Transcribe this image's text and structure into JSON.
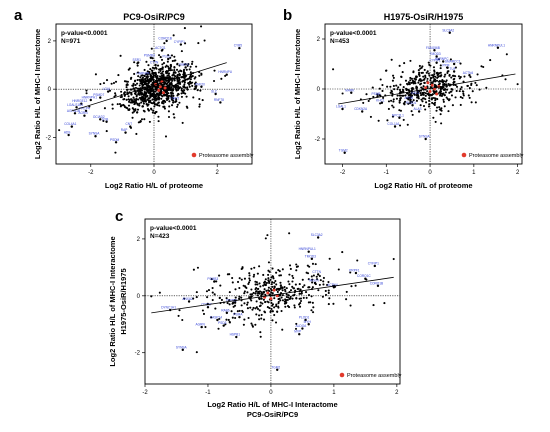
{
  "colors": {
    "points": "#000000",
    "labels": "#2f3fd6",
    "proteasome": "#e23a2c",
    "trend": "#000000"
  },
  "chart_data": [
    {
      "id": "a",
      "type": "scatter",
      "letter": "a",
      "title": "PC9-OsiR/PC9",
      "xlabel": "Log2 Ratio H/L of proteome",
      "ylabel": "Log2 Ratio H/L of MHC-I Interactome",
      "ylabel2": "",
      "xlim": [
        -3.1,
        3.1
      ],
      "ylim": [
        -3.1,
        2.7
      ],
      "xticks": [
        -2,
        0,
        2
      ],
      "yticks": [
        -2,
        0,
        2
      ],
      "xtick_labels": [
        "-2",
        "0",
        "2"
      ],
      "ytick_labels": [
        "-2",
        "0",
        "2"
      ],
      "pvalue": "p-value<0.0001",
      "n_label": "N=971",
      "n_points": 971,
      "cloud_center": [
        0.1,
        0.05
      ],
      "cloud_spread": [
        0.55,
        0.42
      ],
      "trend": {
        "x": [
          -2.6,
          2.3
        ],
        "y": [
          -0.9,
          1.1
        ]
      },
      "proteasome_points": [
        [
          0.15,
          -0.05
        ],
        [
          0.2,
          0.1
        ],
        [
          0.3,
          -0.15
        ],
        [
          0.05,
          0.2
        ],
        [
          0.25,
          0.3
        ],
        [
          0.35,
          0.05
        ]
      ],
      "legend": "Proteasome assembly",
      "labels": [
        {
          "t": "CYFIP1",
          "x": 0.85,
          "y": 1.85
        },
        {
          "t": "CORO1B",
          "x": 0.4,
          "y": 2.0
        },
        {
          "t": "ACTG1",
          "x": 0.25,
          "y": 1.6
        },
        {
          "t": "PSMB3",
          "x": -0.1,
          "y": 1.3
        },
        {
          "t": "CTTN",
          "x": 0.05,
          "y": 1.0
        },
        {
          "t": "SSR1",
          "x": -0.5,
          "y": 1.1
        },
        {
          "t": "PLEC",
          "x": 0.45,
          "y": 1.25
        },
        {
          "t": "PRPF1",
          "x": 1.0,
          "y": 0.9
        },
        {
          "t": "CYB5",
          "x": 2.7,
          "y": 1.7
        },
        {
          "t": "HNRNPU",
          "x": 2.3,
          "y": 0.6
        },
        {
          "t": "SLC",
          "x": 1.95,
          "y": -0.2
        },
        {
          "t": "RNF20",
          "x": 1.5,
          "y": 0.1
        },
        {
          "t": "RNF78",
          "x": 2.1,
          "y": -0.55
        },
        {
          "t": "HNRNPA",
          "x": -0.3,
          "y": 0.55
        },
        {
          "t": "TIMP2",
          "x": 0.7,
          "y": -0.5
        },
        {
          "t": "HNRNPH1",
          "x": -2.0,
          "y": -0.45
        },
        {
          "t": "PSMD7",
          "x": -1.7,
          "y": -0.35
        },
        {
          "t": "LGAL",
          "x": -1.45,
          "y": -0.1
        },
        {
          "t": "HNRGE12",
          "x": -2.3,
          "y": -0.6
        },
        {
          "t": "LGALS1B3",
          "x": -2.45,
          "y": -0.75
        },
        {
          "t": "PRCP4",
          "x": -2.15,
          "y": -0.9
        },
        {
          "t": "AGRN1B",
          "x": -2.5,
          "y": -1.0
        },
        {
          "t": "AGRN",
          "x": -2.2,
          "y": -1.1
        },
        {
          "t": "OCIAD2",
          "x": -1.7,
          "y": -1.25
        },
        {
          "t": "COL4A1",
          "x": -2.6,
          "y": -1.55
        },
        {
          "t": "SYB",
          "x": -1.5,
          "y": -1.35
        },
        {
          "t": "ADS",
          "x": -2.7,
          "y": -1.9
        },
        {
          "t": "SYNSA",
          "x": -1.85,
          "y": -1.95
        },
        {
          "t": "PSDM",
          "x": -1.2,
          "y": -2.2
        },
        {
          "t": "RAP",
          "x": -0.9,
          "y": -1.8
        },
        {
          "t": "CNT",
          "x": -0.75,
          "y": -1.55
        }
      ]
    },
    {
      "id": "b",
      "type": "scatter",
      "letter": "b",
      "title": "H1975-OsiR/H1975",
      "xlabel": "Log2 Ratio H/L of proteome",
      "ylabel": "Log2 Ratio H/L of MHC-I Interactome",
      "ylabel2": "",
      "xlim": [
        -2.4,
        2.1
      ],
      "ylim": [
        -3.0,
        2.6
      ],
      "xticks": [
        -2,
        -1,
        0,
        1,
        2
      ],
      "yticks": [
        -2,
        0,
        2
      ],
      "xtick_labels": [
        "-2",
        "-1",
        "0",
        "1",
        "2"
      ],
      "ytick_labels": [
        "-2",
        "0",
        "2"
      ],
      "pvalue": "p-value<0.0001",
      "n_label": "N=453",
      "n_points": 453,
      "cloud_center": [
        -0.05,
        0.05
      ],
      "cloud_spread": [
        0.45,
        0.4
      ],
      "trend": {
        "x": [
          -2.1,
          1.95
        ],
        "y": [
          -0.6,
          0.6
        ]
      },
      "proteasome_points": [
        [
          0.0,
          -0.1
        ],
        [
          0.05,
          0.15
        ],
        [
          0.1,
          0.0
        ],
        [
          -0.05,
          0.25
        ],
        [
          0.15,
          -0.2
        ],
        [
          0.2,
          0.1
        ],
        [
          -0.1,
          0.05
        ]
      ],
      "legend": "Proteasome assembly",
      "labels": [
        {
          "t": "SLC3A2",
          "x": 0.45,
          "y": 2.25
        },
        {
          "t": "HNRNPUL1",
          "x": 1.55,
          "y": 1.65
        },
        {
          "t": "FAM156B",
          "x": 0.1,
          "y": 1.55
        },
        {
          "t": "TMOD3",
          "x": 0.15,
          "y": 1.3
        },
        {
          "t": "CYFIP1",
          "x": 0.15,
          "y": 1.05
        },
        {
          "t": "HNRNPC",
          "x": 0.3,
          "y": 1.1
        },
        {
          "t": "PPIF",
          "x": 0.4,
          "y": 0.85
        },
        {
          "t": "TUF",
          "x": 0.55,
          "y": 0.7
        },
        {
          "t": "ACTN4",
          "x": 0.9,
          "y": 0.55
        },
        {
          "t": "SMARCC1",
          "x": 0.55,
          "y": 1.0
        },
        {
          "t": "MARK",
          "x": -1.8,
          "y": -0.15
        },
        {
          "t": "PSMB",
          "x": -1.2,
          "y": -0.3
        },
        {
          "t": "KHC1",
          "x": -1.1,
          "y": -0.55
        },
        {
          "t": "LGAL1",
          "x": -2.0,
          "y": -0.8
        },
        {
          "t": "CDKN2A",
          "x": -1.55,
          "y": -0.9
        },
        {
          "t": "APOB",
          "x": -0.45,
          "y": -0.45
        },
        {
          "t": "PLOD1",
          "x": -0.4,
          "y": -0.65
        },
        {
          "t": "NPC2L1",
          "x": -0.7,
          "y": -1.15
        },
        {
          "t": "COL1A1",
          "x": -0.8,
          "y": -1.5
        },
        {
          "t": "SYNSA",
          "x": -0.1,
          "y": -2.0
        },
        {
          "t": "TGM2",
          "x": -1.95,
          "y": -2.55
        },
        {
          "t": "RAC1",
          "x": -0.3,
          "y": -0.25
        },
        {
          "t": "ALAS",
          "x": -0.25,
          "y": -0.9
        }
      ]
    },
    {
      "id": "c",
      "type": "scatter",
      "letter": "c",
      "title": "",
      "xlabel": "Log2 Ratio H/L of MHC-I Interactome",
      "xlabel2": "PC9-OsiR/PC9",
      "ylabel": "Log2 Ratio H/L of MHC-I Interactome",
      "ylabel2": "H1975-OsiR/H1975",
      "xlim": [
        -2.0,
        2.05
      ],
      "ylim": [
        -3.1,
        2.7
      ],
      "xticks": [
        -2,
        -1,
        0,
        1,
        2
      ],
      "yticks": [
        -2,
        0,
        2
      ],
      "xtick_labels": [
        "-2",
        "-1",
        "0",
        "1",
        "2"
      ],
      "ytick_labels": [
        "-2",
        "0",
        "2"
      ],
      "pvalue": "p-value<0.0001",
      "n_label": "N=423",
      "n_points": 423,
      "cloud_center": [
        0.0,
        0.05
      ],
      "cloud_spread": [
        0.5,
        0.42
      ],
      "trend": {
        "x": [
          -1.9,
          1.95
        ],
        "y": [
          -0.6,
          0.65
        ]
      },
      "proteasome_points": [
        [
          -0.05,
          0.1
        ],
        [
          0.0,
          -0.1
        ],
        [
          0.05,
          0.2
        ],
        [
          -0.1,
          -0.05
        ],
        [
          0.1,
          0.0
        ]
      ],
      "legend": "Proteasome assembly",
      "labels": [
        {
          "t": "SLC3A2",
          "x": 0.75,
          "y": 2.05
        },
        {
          "t": "HNRNPUL1",
          "x": 0.6,
          "y": 1.55
        },
        {
          "t": "TMOD3",
          "x": 0.65,
          "y": 1.3
        },
        {
          "t": "CYFIP1",
          "x": 1.65,
          "y": 1.05
        },
        {
          "t": "PRPF1",
          "x": 1.35,
          "y": 0.8
        },
        {
          "t": "CORO1C",
          "x": 1.5,
          "y": 0.6
        },
        {
          "t": "CORO1B",
          "x": 1.7,
          "y": 0.35
        },
        {
          "t": "ACTN4",
          "x": 1.0,
          "y": 0.3
        },
        {
          "t": "CTTN",
          "x": 0.75,
          "y": 0.75
        },
        {
          "t": "TAGLN",
          "x": 0.7,
          "y": 0.45
        },
        {
          "t": "PSMB3",
          "x": -0.9,
          "y": 0.5
        },
        {
          "t": "ANXA2",
          "x": -1.3,
          "y": -0.2
        },
        {
          "t": "DYNC1H1",
          "x": -1.6,
          "y": -0.5
        },
        {
          "t": "PSMB2",
          "x": -0.6,
          "y": -0.25
        },
        {
          "t": "CDC37",
          "x": -1.0,
          "y": -0.4
        },
        {
          "t": "RAB6",
          "x": -0.7,
          "y": -0.6
        },
        {
          "t": "PSMA",
          "x": -0.5,
          "y": -0.75
        },
        {
          "t": "AGRN",
          "x": -1.1,
          "y": -1.1
        },
        {
          "t": "PSD3",
          "x": -0.75,
          "y": -1.05
        },
        {
          "t": "CASP14",
          "x": -0.85,
          "y": -0.85
        },
        {
          "t": "HSPB1",
          "x": -0.55,
          "y": -1.45
        },
        {
          "t": "PLOD1",
          "x": 0.55,
          "y": -0.85
        },
        {
          "t": "ALDOA",
          "x": 0.5,
          "y": -1.15
        },
        {
          "t": "MVP",
          "x": 0.45,
          "y": -1.35
        },
        {
          "t": "SYNSA",
          "x": -1.4,
          "y": -1.9
        },
        {
          "t": "TGM2",
          "x": 0.1,
          "y": -2.6
        },
        {
          "t": "MYH",
          "x": 0.6,
          "y": -1.0
        }
      ]
    }
  ]
}
